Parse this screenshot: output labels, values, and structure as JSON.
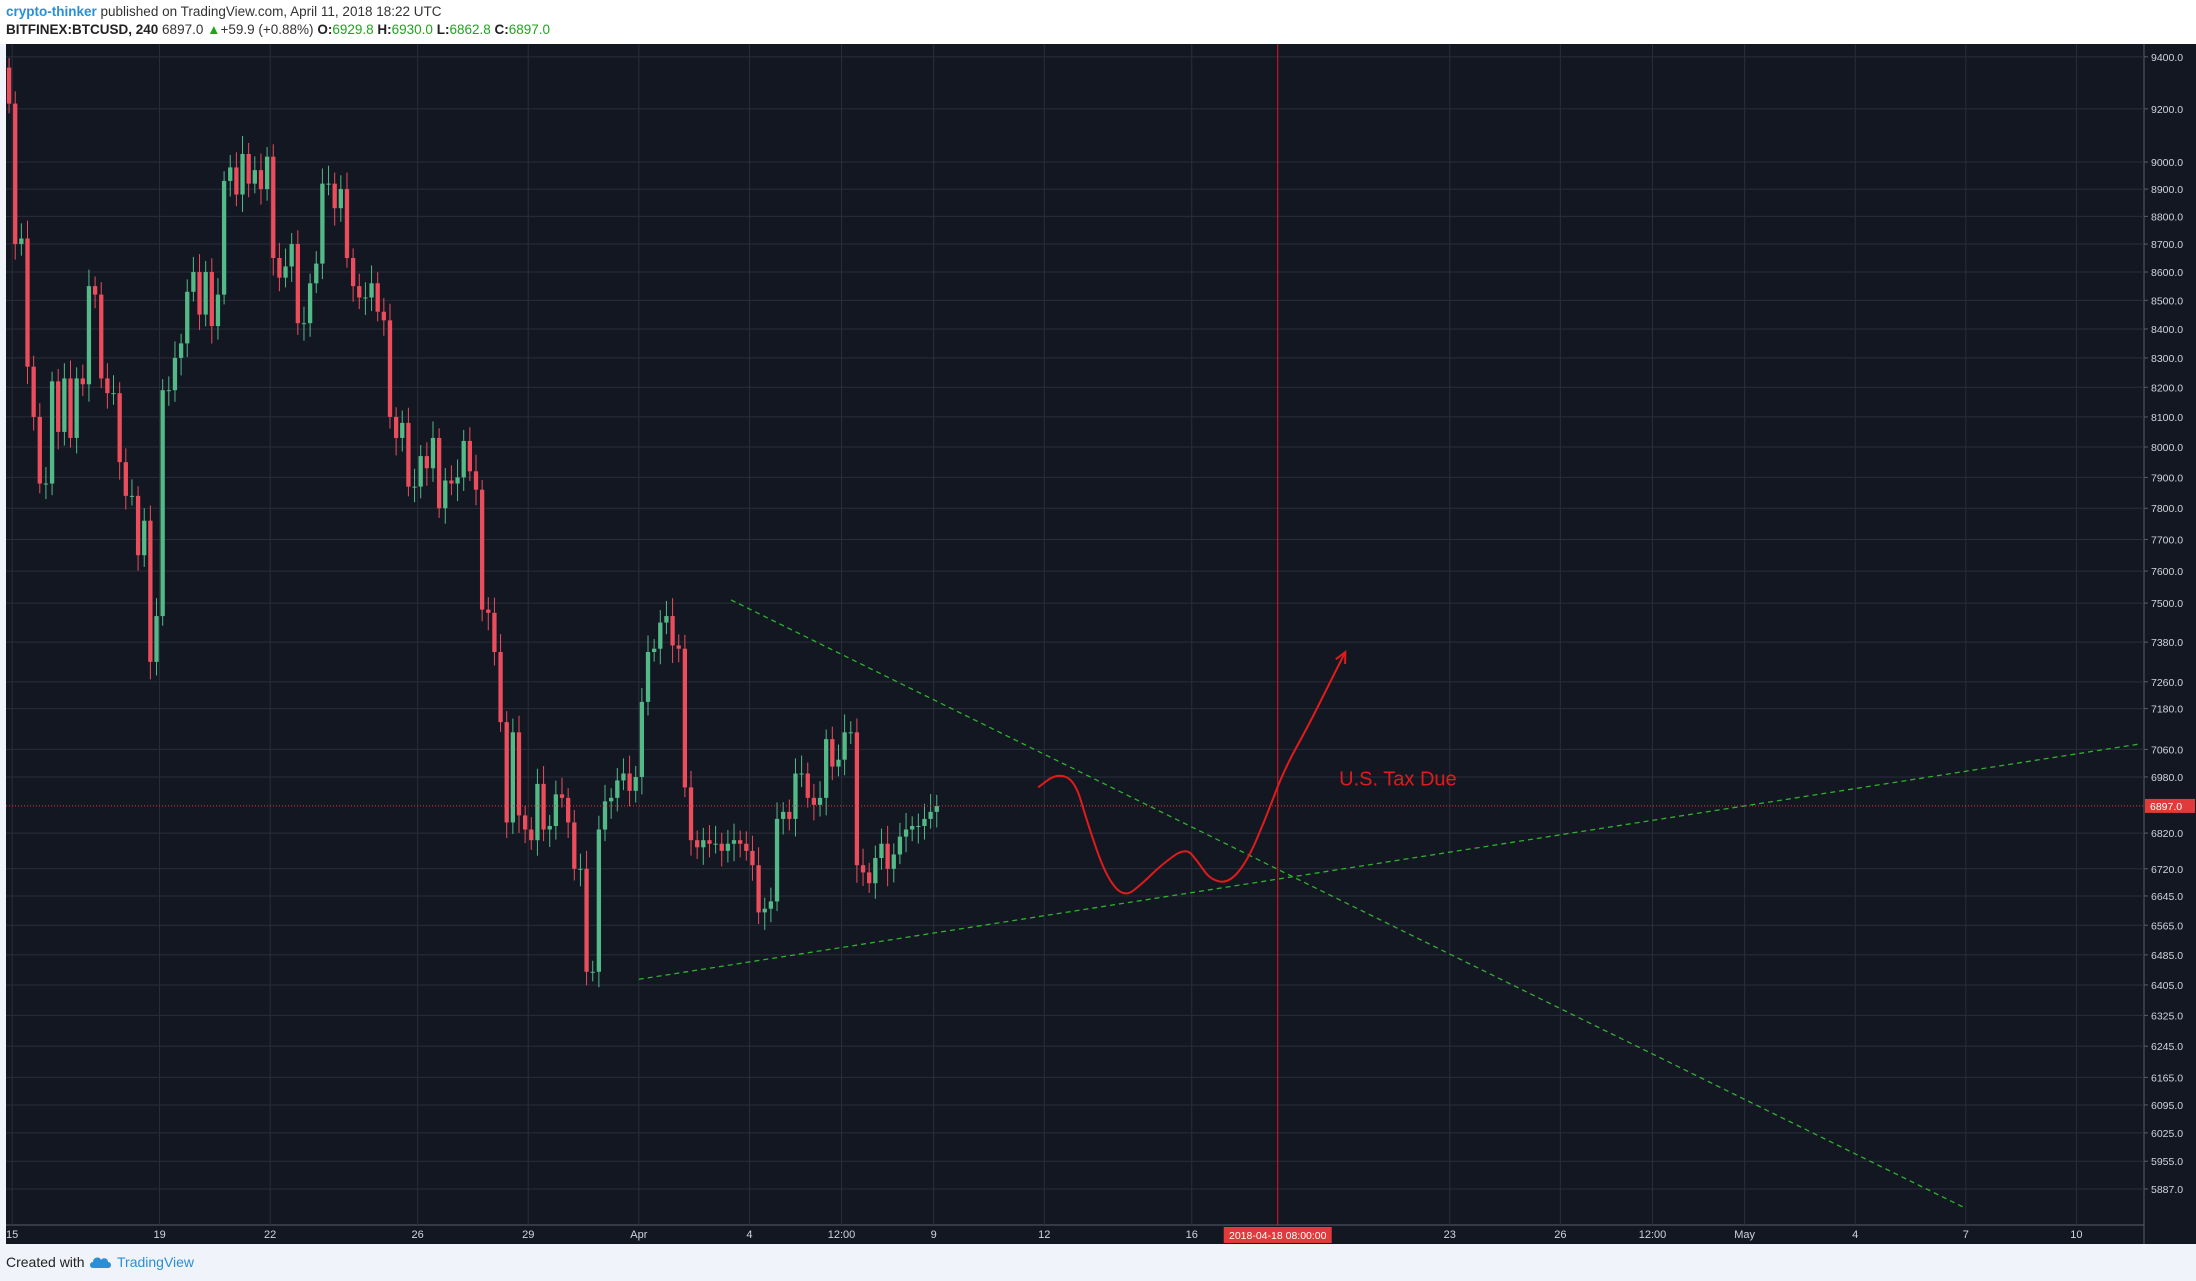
{
  "header": {
    "author": "crypto-thinker",
    "published": "published on TradingView.com, April 11, 2018 18:22 UTC",
    "symbol": "BITFINEX:BTCUSD, 240",
    "last_price": "6897.0",
    "change_arrow": "▲",
    "change": "+59.9 (+0.88%)",
    "open_label": "O:",
    "open": "6929.8",
    "high_label": "H:",
    "high": "6930.0",
    "low_label": "L:",
    "low": "6862.8",
    "close_label": "C:",
    "close": "6897.0"
  },
  "footer": {
    "created_with": "Created with",
    "brand": "TradingView"
  },
  "colors": {
    "background": "#131722",
    "grid": "#2a2e39",
    "up": "#53b987",
    "down": "#eb4d5c",
    "trendline": "#2fb12f",
    "drawing": "#e01b1b",
    "price_line": "#e03a3a"
  },
  "chart_data": {
    "type": "candlestick",
    "price_scale": "log",
    "ylim": [
      5800,
      9450
    ],
    "y_ticks": [
      9400.0,
      9200.0,
      9000.0,
      8900.0,
      8800.0,
      8700.0,
      8600.0,
      8500.0,
      8400.0,
      8300.0,
      8200.0,
      8100.0,
      8000.0,
      7900.0,
      7800.0,
      7700.0,
      7600.0,
      7500.0,
      7380.0,
      7260.0,
      7180.0,
      7060.0,
      6980.0,
      6820.0,
      6720.0,
      6645.0,
      6565.0,
      6485.0,
      6405.0,
      6325.0,
      6245.0,
      6165.0,
      6095.0,
      6025.0,
      5955.0,
      5887.0
    ],
    "x_range": [
      "2018-03-14 20:00",
      "2018-05-11 20:00"
    ],
    "x_ticks": [
      {
        "t": "2018-03-15",
        "label": "15"
      },
      {
        "t": "2018-03-19",
        "label": "19"
      },
      {
        "t": "2018-03-22",
        "label": "22"
      },
      {
        "t": "2018-03-26",
        "label": "26"
      },
      {
        "t": "2018-03-29",
        "label": "29"
      },
      {
        "t": "2018-04-01",
        "label": "Apr"
      },
      {
        "t": "2018-04-04",
        "label": "4"
      },
      {
        "t": "2018-04-06 12:00",
        "label": "12:00"
      },
      {
        "t": "2018-04-09",
        "label": "9"
      },
      {
        "t": "2018-04-12",
        "label": "12"
      },
      {
        "t": "2018-04-16",
        "label": "16"
      },
      {
        "t": "2018-04-23",
        "label": "23"
      },
      {
        "t": "2018-04-26",
        "label": "26"
      },
      {
        "t": "2018-04-28 12:00",
        "label": "12:00"
      },
      {
        "t": "2018-05-01",
        "label": "May"
      },
      {
        "t": "2018-05-04",
        "label": "4"
      },
      {
        "t": "2018-05-07",
        "label": "7"
      },
      {
        "t": "2018-05-10",
        "label": "10"
      }
    ],
    "candle_interval_hours": 4,
    "candles_start": "2018-03-14 20:00",
    "candles_close": [
      9220,
      8700,
      8720,
      8270,
      8100,
      7880,
      7880,
      8220,
      8050,
      8230,
      8030,
      8230,
      8210,
      8550,
      8520,
      8230,
      8180,
      8180,
      7950,
      7840,
      7840,
      7650,
      7760,
      7320,
      7460,
      8190,
      8190,
      8300,
      8350,
      8530,
      8600,
      8450,
      8600,
      8410,
      8520,
      8930,
      8980,
      8880,
      9030,
      8920,
      8970,
      8900,
      9020,
      8650,
      8580,
      8620,
      8700,
      8420,
      8420,
      8560,
      8630,
      8920,
      8920,
      8830,
      8900,
      8650,
      8550,
      8510,
      8510,
      8560,
      8460,
      8430,
      8100,
      8030,
      8080,
      7870,
      7870,
      7970,
      7930,
      8030,
      7800,
      7890,
      7880,
      7900,
      8020,
      7920,
      7860,
      7480,
      7470,
      7350,
      7140,
      6850,
      7110,
      6870,
      6830,
      6800,
      6960,
      6830,
      6840,
      6930,
      6920,
      6850,
      6720,
      6720,
      6440,
      6440,
      6830,
      6910,
      6920,
      6970,
      6990,
      6940,
      6980,
      7200,
      7350,
      7360,
      7440,
      7460,
      7370,
      7360,
      6950,
      6800,
      6780,
      6800,
      6790,
      6790,
      6770,
      6790,
      6800,
      6790,
      6770,
      6730,
      6600,
      6610,
      6630,
      6860,
      6880,
      6860,
      6990,
      6990,
      6920,
      6900,
      6920,
      7090,
      7010,
      7030,
      7110,
      7110,
      6730,
      6710,
      6680,
      6750,
      6790,
      6720,
      6760,
      6810,
      6830,
      6840,
      6840,
      6860,
      6880,
      6897
    ],
    "lines": [
      {
        "kind": "trend-up",
        "from": [
          "2018-04-01 00:00",
          6420
        ],
        "to": [
          "2018-05-11 16:00",
          7075
        ],
        "style": "dashed"
      },
      {
        "kind": "trend-down",
        "from": [
          "2018-04-03 12:00",
          7510
        ],
        "to": [
          "2018-05-07 00:00",
          5840
        ],
        "style": "dashed"
      },
      {
        "kind": "price-line",
        "value": 6897.0,
        "label": "6897.0"
      },
      {
        "kind": "vertical-marker",
        "t": "2018-04-18 08:00",
        "label": "2018-04-18 08:00:00"
      }
    ],
    "projection": [
      [
        "2018-04-11 20:00",
        6950
      ],
      [
        "2018-04-12 08:00",
        6990
      ],
      [
        "2018-04-12 20:00",
        6970
      ],
      [
        "2018-04-13 04:00",
        6850
      ],
      [
        "2018-04-13 16:00",
        6700
      ],
      [
        "2018-04-14 04:00",
        6640
      ],
      [
        "2018-04-14 16:00",
        6680
      ],
      [
        "2018-04-15 04:00",
        6730
      ],
      [
        "2018-04-15 20:00",
        6780
      ],
      [
        "2018-04-16 04:00",
        6740
      ],
      [
        "2018-04-16 12:00",
        6690
      ],
      [
        "2018-04-17 00:00",
        6680
      ],
      [
        "2018-04-17 12:00",
        6740
      ],
      [
        "2018-04-18 00:00",
        6860
      ],
      [
        "2018-04-18 12:00",
        7000
      ],
      [
        "2018-04-19 04:00",
        7130
      ],
      [
        "2018-04-19 16:00",
        7240
      ],
      [
        "2018-04-20 04:00",
        7350
      ]
    ],
    "annotations": [
      {
        "text": "U.S. Tax Due",
        "t": "2018-04-20 00:00",
        "y": 6955
      }
    ]
  }
}
